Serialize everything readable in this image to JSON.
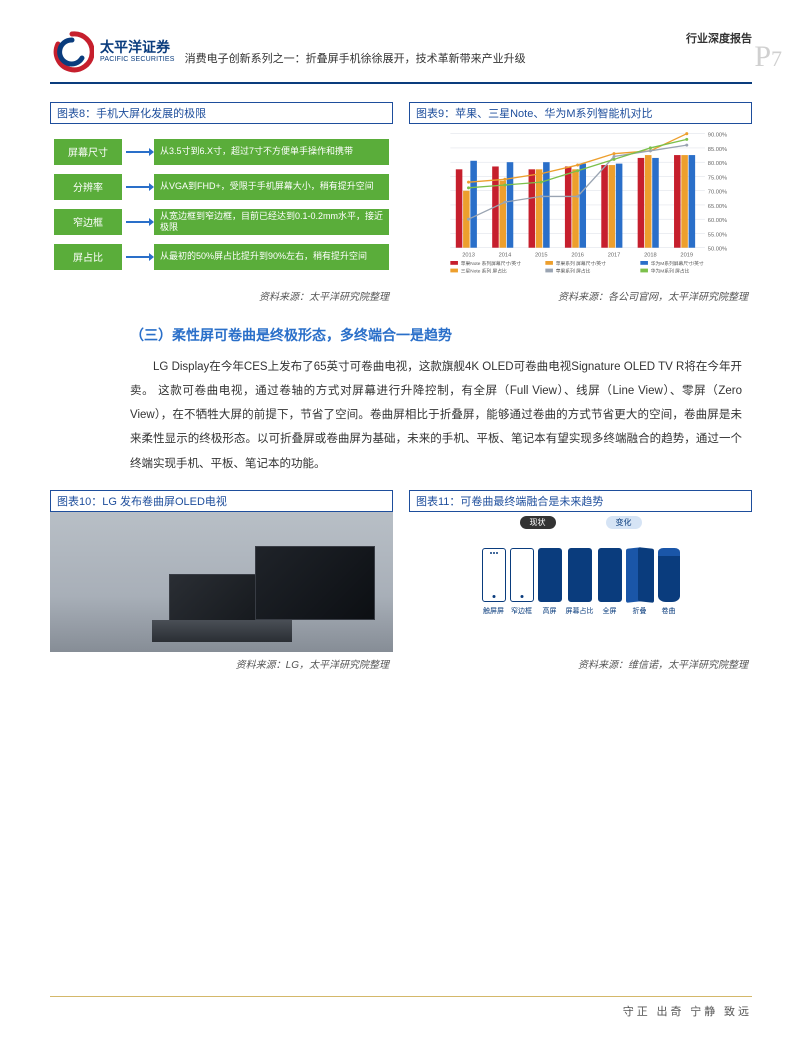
{
  "brand": {
    "cn": "太平洋证券",
    "en": "PACIFIC SECURITIES",
    "logo_colors": {
      "red": "#c61f2d",
      "blue": "#0a3c7d"
    }
  },
  "header": {
    "category": "行业深度报告",
    "title": "消费电子创新系列之一：折叠屏手机徐徐展开，技术革新带来产业升级",
    "page_label": "P",
    "page_number": "7"
  },
  "fig8": {
    "title": "图表8：手机大屏化发展的极限",
    "rows": [
      {
        "left": "屏幕尺寸",
        "right": "从3.5寸到6.X寸，超过7寸不方便单手操作和携带"
      },
      {
        "left": "分辨率",
        "right": "从VGA到FHD+，受限于手机屏幕大小，稍有提升空间"
      },
      {
        "left": "窄边框",
        "right": "从宽边框到窄边框，目前已经达到0.1-0.2mm水平，接近极限"
      },
      {
        "left": "屏占比",
        "right": "从最初的50%屏占比提升到90%左右，稍有提升空间"
      }
    ],
    "source": "资料来源：太平洋研究院整理",
    "colors": {
      "box": "#5aad3a",
      "arrow": "#2a6fc9"
    }
  },
  "fig9": {
    "title": "图表9：苹果、三星Note、华为M系列智能机对比",
    "type": "bar+line",
    "x_categories": [
      "2013",
      "2014",
      "2015",
      "2016",
      "2017",
      "2018",
      "2019"
    ],
    "bar_series": [
      {
        "name": "苹果Note 系列屏幕尺寸/英寸",
        "color": "#c61f2d",
        "values": [
          5.5,
          5.7,
          5.5,
          5.7,
          5.8,
          6.3,
          6.5
        ]
      },
      {
        "name": "苹果系列 屏幕尺寸/英寸",
        "color": "#ed9f2d",
        "values": [
          4.0,
          4.7,
          5.5,
          5.5,
          5.8,
          6.5,
          6.5
        ]
      },
      {
        "name": "华为M系列屏幕尺寸/英寸",
        "color": "#2a6fc9",
        "values": [
          6.1,
          6.0,
          6.0,
          5.9,
          5.9,
          6.3,
          6.5
        ]
      }
    ],
    "line_series": [
      {
        "name": "三星Note 系列 屏占比",
        "color": "#ed9f2d",
        "values": [
          0.73,
          0.74,
          0.76,
          0.79,
          0.83,
          0.84,
          0.9
        ]
      },
      {
        "name": "苹果系列 屏占比",
        "color": "#9aa4b2",
        "values": [
          0.6,
          0.66,
          0.68,
          0.68,
          0.82,
          0.84,
          0.86
        ]
      },
      {
        "name": "华为M系列 屏占比",
        "color": "#7cc04b",
        "values": [
          0.71,
          0.72,
          0.73,
          0.77,
          0.81,
          0.85,
          0.88
        ]
      }
    ],
    "y_left": {
      "min": 0,
      "max": 8,
      "step": 1
    },
    "y_right": {
      "min": 0.5,
      "max": 0.9,
      "step": 0.05,
      "format": "percent"
    },
    "grid_color": "#d8dde4",
    "background": "#ffffff",
    "source": "资料来源：各公司官网，太平洋研究院整理"
  },
  "section3": {
    "heading": "（三）柔性屏可卷曲是终极形态，多终端合一是趋势",
    "body": "LG Display在今年CES上发布了65英寸可卷曲电视，这款旗舰4K OLED可卷曲电视Signature OLED TV R将在今年开卖。 这款可卷曲电视，通过卷轴的方式对屏幕进行升降控制，有全屏（Full View）、线屏（Line View）、零屏（Zero View），在不牺牲大屏的前提下，节省了空间。卷曲屏相比于折叠屏，能够通过卷曲的方式节省更大的空间，卷曲屏是未来柔性显示的终极形态。以可折叠屏或卷曲屏为基础，未来的手机、平板、笔记本有望实现多终端融合的趋势，通过一个终端实现手机、平板、笔记本的功能。"
  },
  "fig10": {
    "title": "图表10：LG 发布卷曲屏OLED电视",
    "source": "资料来源：LG，太平洋研究院整理"
  },
  "fig11": {
    "title": "图表11：可卷曲最终端融合是未来趋势",
    "header": {
      "left": "现状",
      "right": "变化"
    },
    "devices": [
      {
        "label": "触屏屏",
        "style": "outline-dots"
      },
      {
        "label": "窄边框",
        "style": "outline"
      },
      {
        "label": "高屏",
        "style": "filled"
      },
      {
        "label": "屏幕占比",
        "style": "filled"
      },
      {
        "label": "全屏",
        "style": "filled"
      },
      {
        "label": "折叠",
        "style": "fold"
      },
      {
        "label": "卷曲",
        "style": "cylinder"
      }
    ],
    "colors": {
      "primary": "#0a3c7d",
      "light": "#1a56a8",
      "pill_light": "#d6e4f5"
    },
    "source": "资料来源：维信诺，太平洋研究院整理"
  },
  "footer": "守正 出奇 宁静 致远"
}
